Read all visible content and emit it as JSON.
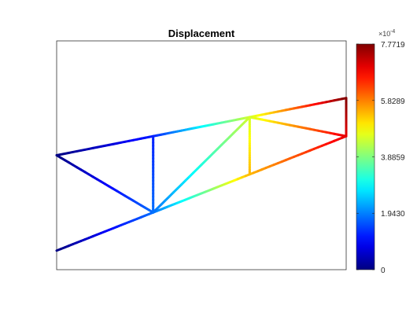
{
  "chart_data": {
    "type": "line",
    "title": "Displacement",
    "xlabel": "",
    "ylabel": "",
    "grid": false,
    "xlim": [
      0,
      6
    ],
    "ylim": [
      -2.4,
      2.4
    ],
    "nodes": [
      {
        "x": 0,
        "y": 0,
        "value": 0.0
      },
      {
        "x": 0,
        "y": -2,
        "value": 0.0
      },
      {
        "x": 2,
        "y": 0.4,
        "value": 0.00012
      },
      {
        "x": 2,
        "y": -1.2,
        "value": 0.00018
      },
      {
        "x": 4,
        "y": 0.8,
        "value": 0.00045
      },
      {
        "x": 4,
        "y": -0.4,
        "value": 0.00054
      },
      {
        "x": 6,
        "y": 1.2,
        "value": 0.00077719
      },
      {
        "x": 6,
        "y": 0.4,
        "value": 0.0007
      }
    ],
    "members": [
      [
        0,
        2
      ],
      [
        2,
        4
      ],
      [
        4,
        6
      ],
      [
        1,
        3
      ],
      [
        3,
        5
      ],
      [
        5,
        7
      ],
      [
        0,
        3
      ],
      [
        2,
        3
      ],
      [
        3,
        4
      ],
      [
        4,
        5
      ],
      [
        4,
        7
      ],
      [
        6,
        7
      ]
    ],
    "colorbar": {
      "colormap": "jet",
      "min": 0,
      "max": 0.00077719,
      "exponent_label": "×10",
      "exponent_power": "-4",
      "ticks": [
        {
          "value": 0,
          "label": "0"
        },
        {
          "value": 0.0001943,
          "label": "1.9430"
        },
        {
          "value": 0.00038859,
          "label": "3.8859"
        },
        {
          "value": 0.00058289,
          "label": "5.8289"
        },
        {
          "value": 0.00077719,
          "label": "7.7719"
        }
      ]
    }
  }
}
